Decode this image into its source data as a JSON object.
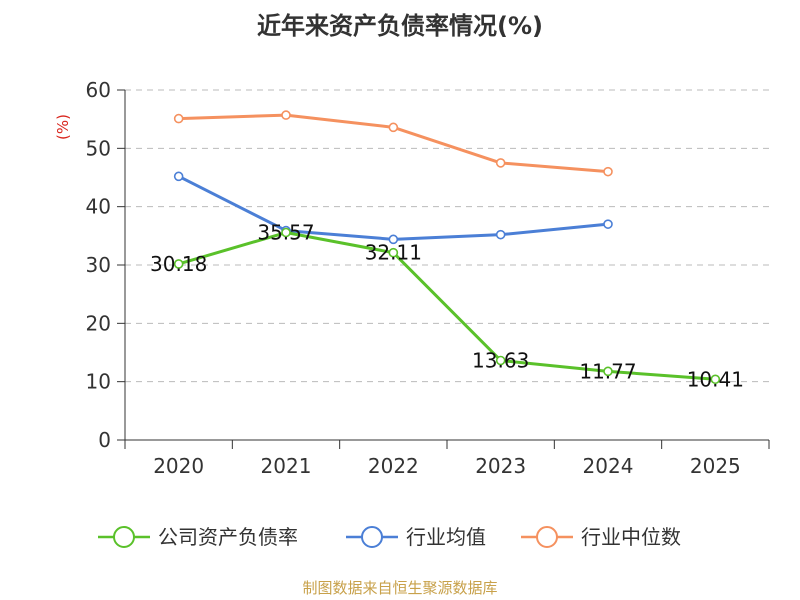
{
  "chart_data": {
    "type": "line",
    "title": "近年来资产负债率情况(%)",
    "ylabel": "(%)",
    "xlabel": "",
    "categories": [
      "2020",
      "2021",
      "2022",
      "2023",
      "2024",
      "2025"
    ],
    "y_ticks": [
      "0",
      "10",
      "20",
      "30",
      "40",
      "50",
      "60"
    ],
    "ylim": [
      0,
      60
    ],
    "grid": true,
    "legend_position": "bottom",
    "series": [
      {
        "name": "公司资产负债率",
        "color": "#5ac12a",
        "values": [
          30.18,
          35.57,
          32.11,
          13.63,
          11.77,
          10.41
        ],
        "labels": [
          "30.18",
          "35.57",
          "32.11",
          "13.63",
          "11.77",
          "10.41"
        ]
      },
      {
        "name": "行业均值",
        "color": "#4b7fd6",
        "values": [
          45.2,
          35.9,
          34.4,
          35.2,
          37.0,
          null
        ],
        "labels": []
      },
      {
        "name": "行业中位数",
        "color": "#f5915f",
        "values": [
          55.1,
          55.7,
          53.6,
          47.5,
          46.0,
          null
        ],
        "labels": []
      }
    ]
  },
  "source_text": "制图数据来自恒生聚源数据库",
  "colors": {
    "axis": "#333333",
    "grid": "#bbbbbb",
    "ylabel": "#d9251d",
    "source": "#c8a14a"
  }
}
